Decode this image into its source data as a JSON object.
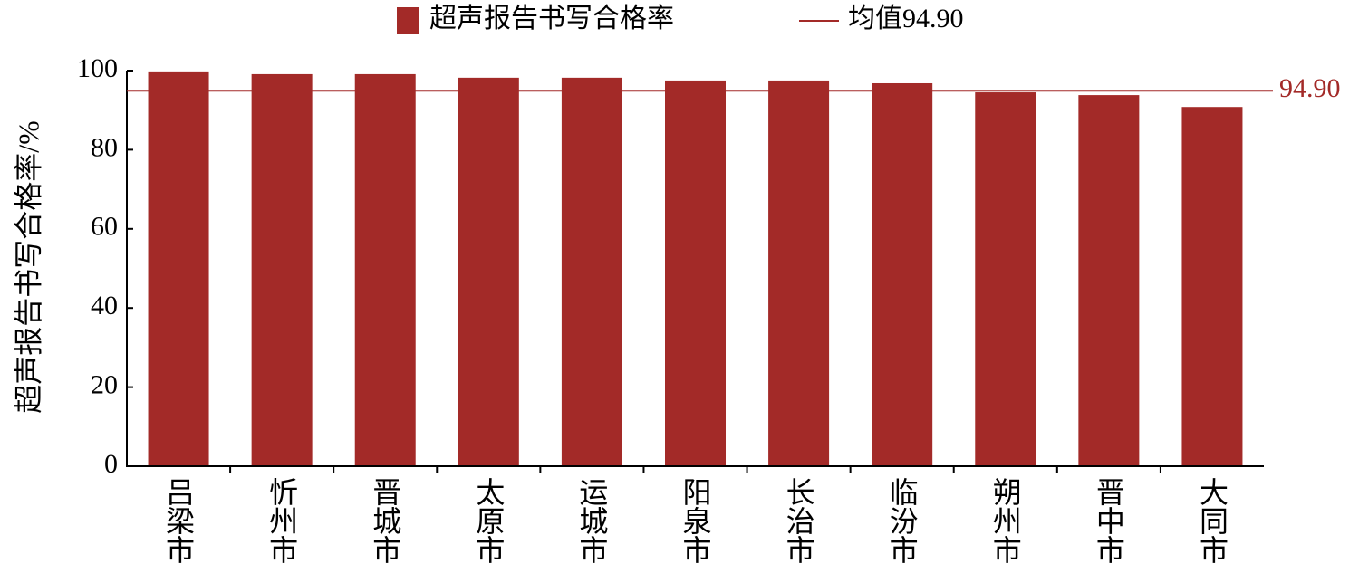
{
  "chart_data": {
    "type": "bar",
    "y_label": "超声报告书写合格率/%",
    "categories": [
      "吕梁市",
      "忻州市",
      "晋城市",
      "太原市",
      "运城市",
      "阳泉市",
      "长治市",
      "临汾市",
      "朔州市",
      "晋中市",
      "大同市"
    ],
    "series": [
      {
        "name": "超声报告书写合格率",
        "color": "#a32a28",
        "values": [
          99.8,
          99.1,
          99.1,
          98.2,
          98.2,
          97.5,
          97.5,
          96.8,
          94.5,
          93.8,
          90.8
        ]
      }
    ],
    "mean_line": {
      "name": "均值94.90",
      "value": 94.9,
      "value_label": "94.90",
      "color": "#a32a28"
    },
    "ylim": [
      0,
      100
    ],
    "yticks": [
      0,
      20,
      40,
      60,
      80,
      100
    ]
  }
}
